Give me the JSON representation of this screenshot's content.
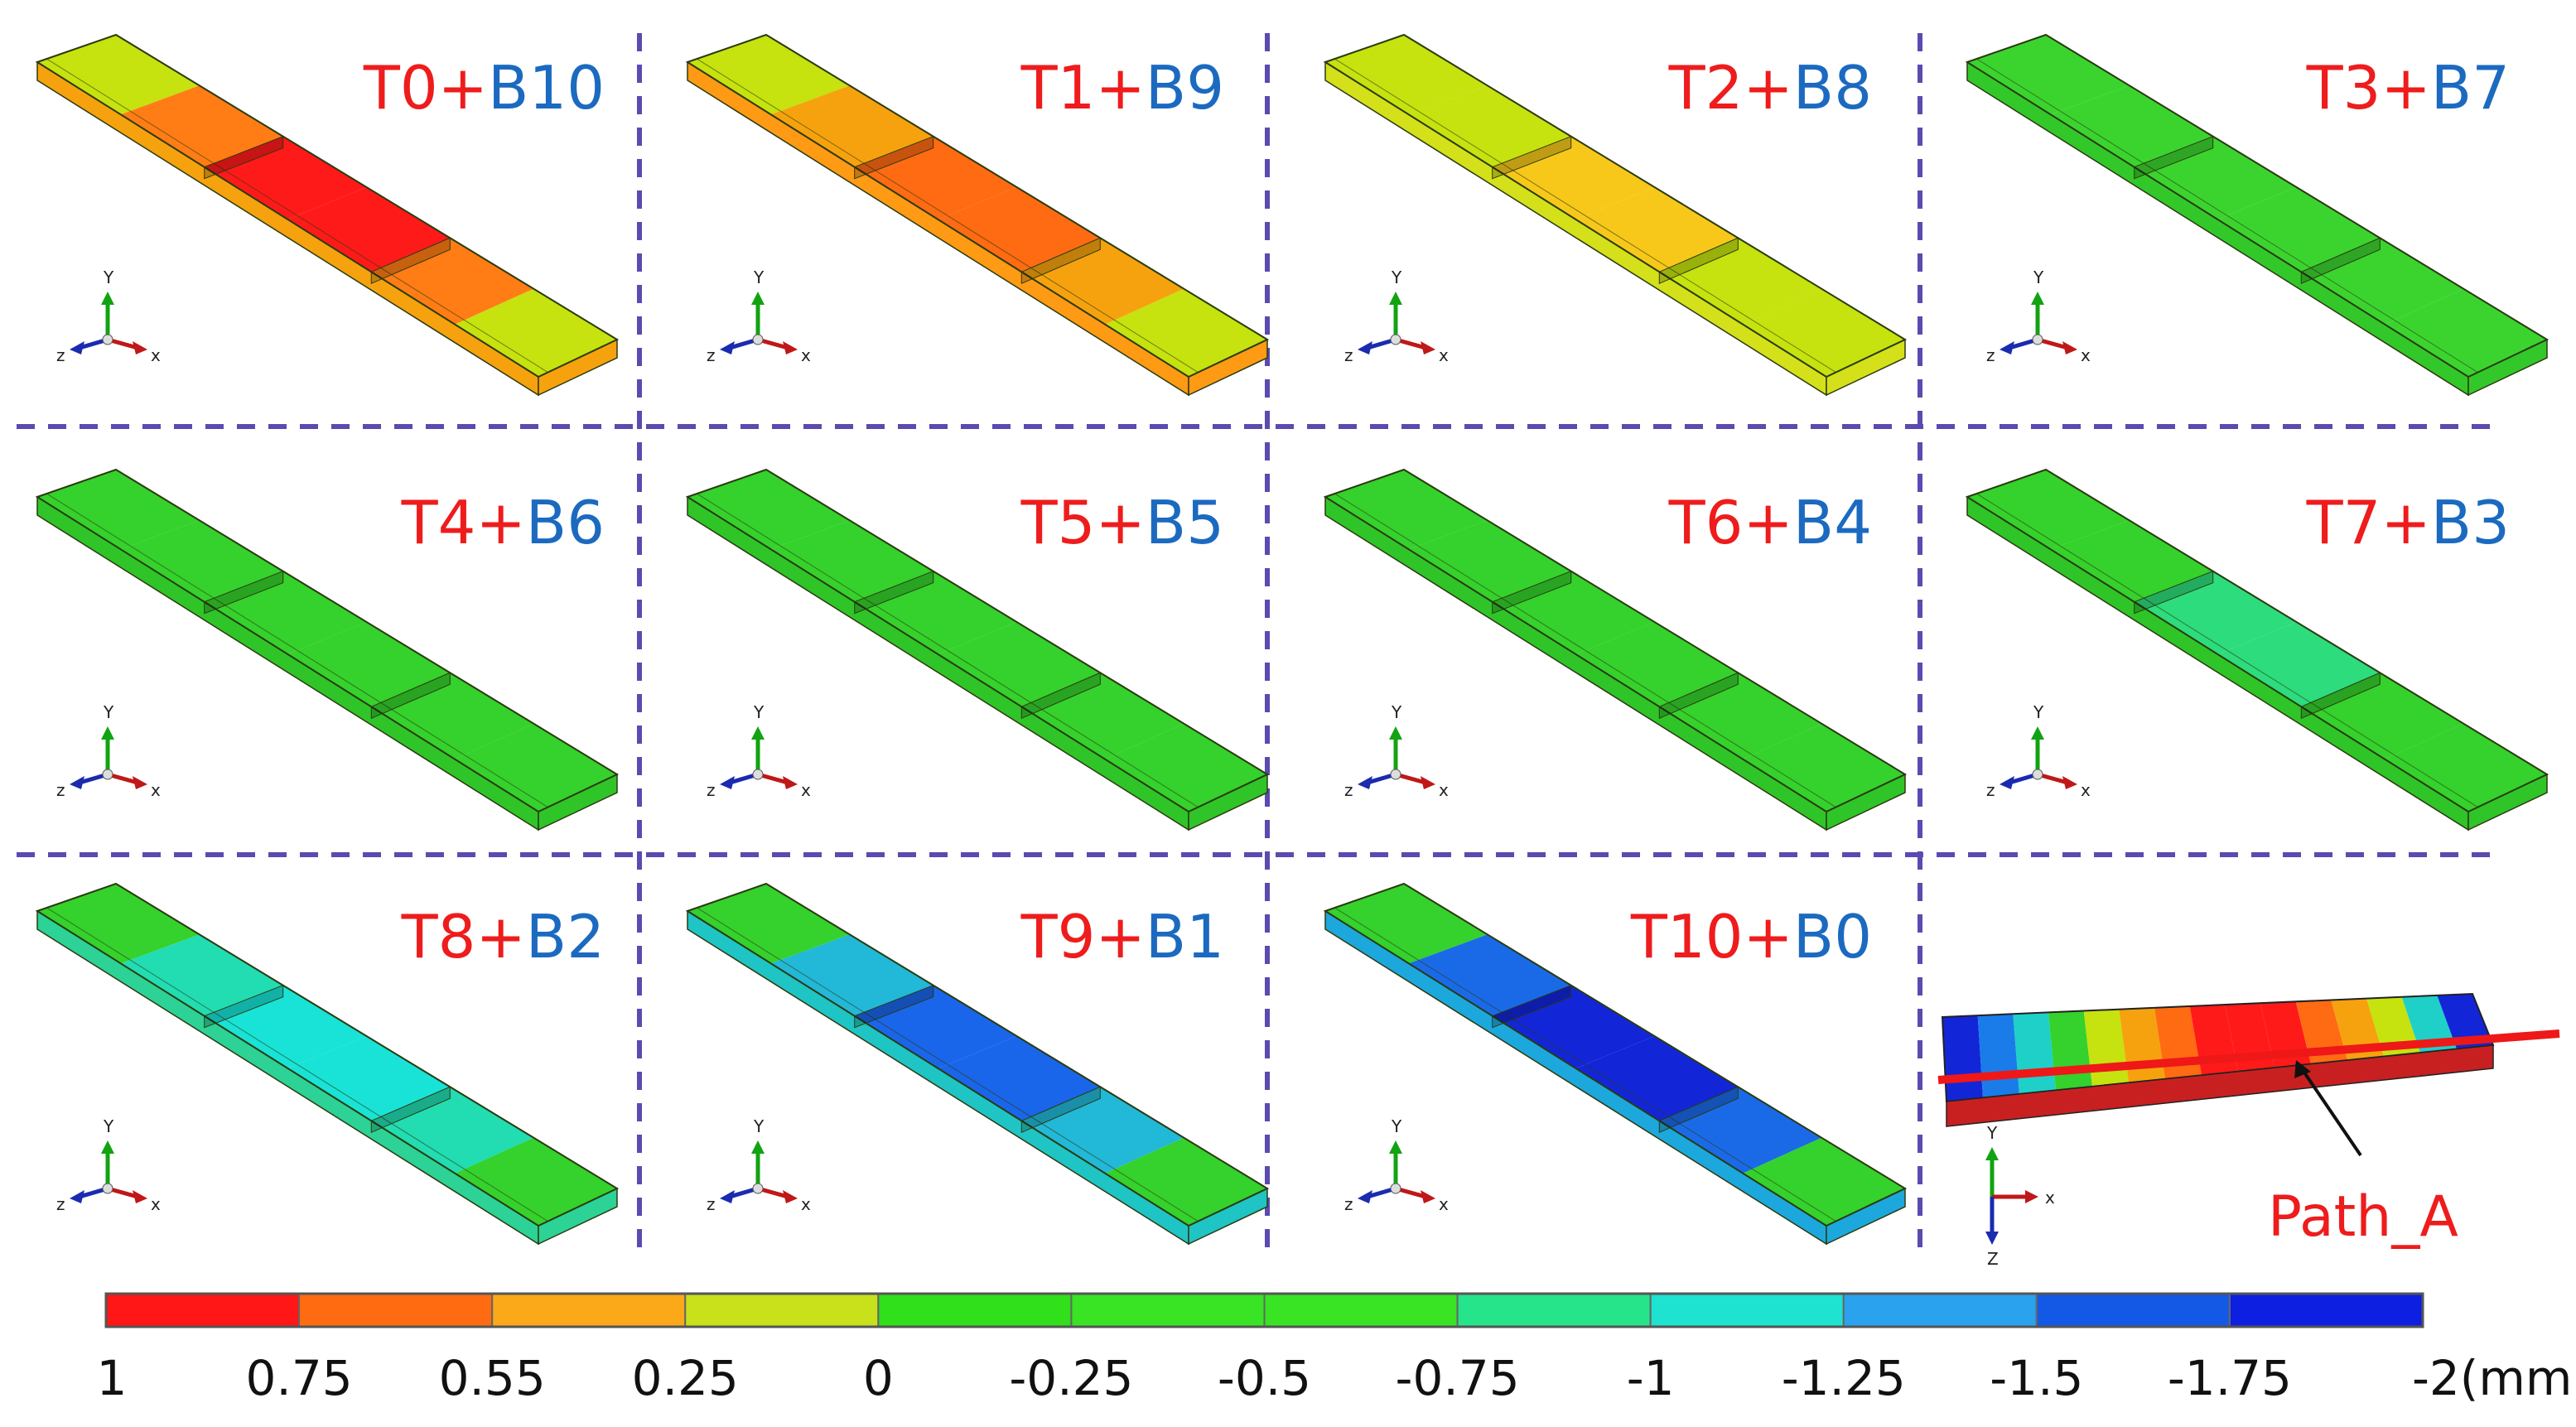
{
  "panels": [
    {
      "t": "T0",
      "b": "B10",
      "plus": "+",
      "colors": {
        "end": "#c6e20f",
        "mid": "#ff7d14",
        "center": "#ff1a1a",
        "side": "#f6a20e"
      }
    },
    {
      "t": "T1",
      "b": "B9",
      "plus": "+",
      "colors": {
        "end": "#c6e20f",
        "mid": "#f6a20e",
        "center": "#ff6b12",
        "side": "#ff9a14"
      }
    },
    {
      "t": "T2",
      "b": "B8",
      "plus": "+",
      "colors": {
        "end": "#c6e20f",
        "mid": "#c6e20f",
        "center": "#f7c81a",
        "side": "#d4e01a"
      }
    },
    {
      "t": "T3",
      "b": "B7",
      "plus": "+",
      "colors": {
        "end": "#3bd42f",
        "mid": "#3bd42f",
        "center": "#3bd42f",
        "side": "#33c82a"
      }
    },
    {
      "t": "T4",
      "b": "B6",
      "plus": "+",
      "colors": {
        "end": "#35d12c",
        "mid": "#35d12c",
        "center": "#35d12c",
        "side": "#2fc528"
      }
    },
    {
      "t": "T5",
      "b": "B5",
      "plus": "+",
      "colors": {
        "end": "#35d12c",
        "mid": "#35d12c",
        "center": "#35d12c",
        "side": "#2fc528"
      }
    },
    {
      "t": "T6",
      "b": "B4",
      "plus": "+",
      "colors": {
        "end": "#35d12c",
        "mid": "#35d12c",
        "center": "#35d12c",
        "side": "#2fc528"
      }
    },
    {
      "t": "T7",
      "b": "B3",
      "plus": "+",
      "colors": {
        "end": "#35d12c",
        "mid": "#35d12c",
        "center": "#2ddc7c",
        "side": "#2fc528"
      }
    },
    {
      "t": "T8",
      "b": "B2",
      "plus": "+",
      "colors": {
        "end": "#35d12c",
        "mid": "#22dcb2",
        "center": "#18e3d6",
        "side": "#2cd296"
      }
    },
    {
      "t": "T9",
      "b": "B1",
      "plus": "+",
      "colors": {
        "end": "#35d12c",
        "mid": "#22b8d8",
        "center": "#1a66ea",
        "side": "#1fc4c4"
      }
    },
    {
      "t": "T10",
      "b": "B0",
      "plus": "+",
      "colors": {
        "end": "#35d12c",
        "mid": "#1a6ae8",
        "center": "#1226d8",
        "side": "#1ca8dc"
      }
    }
  ],
  "path_label": "Path_A",
  "axis_labels": {
    "x": "x",
    "y": "Y",
    "z": "z",
    "z_path": "Z"
  },
  "colorbar": {
    "colors": [
      "#ff1616",
      "#ff6b10",
      "#fba918",
      "#c8e11a",
      "#2fe01a",
      "#38e423",
      "#38e423",
      "#26e48a",
      "#1de3d0",
      "#2aa2ee",
      "#1458e6",
      "#0d1fe0"
    ],
    "ticks": [
      "1",
      "0.75",
      "0.55",
      "0.25",
      "0",
      "-0.25",
      "-0.5",
      "-0.75",
      "-1",
      "-1.25",
      "-1.5",
      "-1.75",
      "-2(mm)"
    ]
  },
  "path_model_colors": [
    "#1226d8",
    "#1a7ce8",
    "#1fd0c8",
    "#35d12c",
    "#c6e20f",
    "#f6a20e",
    "#ff6b12",
    "#ff1a1a"
  ]
}
